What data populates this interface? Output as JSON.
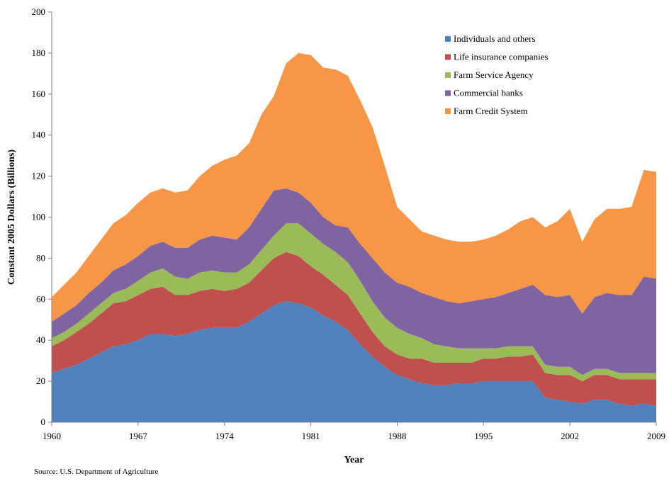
{
  "chart_data": {
    "type": "area",
    "stacked": true,
    "title": "",
    "xlabel": "Year",
    "ylabel": "Constant 2005 Dollars (Billions)",
    "xlim": [
      1960,
      2009
    ],
    "ylim": [
      0,
      200
    ],
    "yticks": [
      0,
      20,
      40,
      60,
      80,
      100,
      120,
      140,
      160,
      180,
      200
    ],
    "xticks": [
      1960,
      1967,
      1974,
      1981,
      1988,
      1995,
      2002,
      2009
    ],
    "legend_position": "top-right",
    "x": [
      1960,
      1961,
      1962,
      1963,
      1964,
      1965,
      1966,
      1967,
      1968,
      1969,
      1970,
      1971,
      1972,
      1973,
      1974,
      1975,
      1976,
      1977,
      1978,
      1979,
      1980,
      1981,
      1982,
      1983,
      1984,
      1985,
      1986,
      1987,
      1988,
      1989,
      1990,
      1991,
      1992,
      1993,
      1994,
      1995,
      1996,
      1997,
      1998,
      1999,
      2000,
      2001,
      2002,
      2003,
      2004,
      2005,
      2006,
      2007,
      2008,
      2009
    ],
    "series": [
      {
        "name": "Individuals and others",
        "color": "#4f81bd",
        "values": [
          24,
          26,
          28,
          31,
          34,
          37,
          38,
          40,
          43,
          43,
          42,
          43,
          45,
          46,
          46,
          46,
          49,
          53,
          57,
          59,
          58,
          56,
          52,
          49,
          45,
          38,
          32,
          27,
          23,
          21,
          19,
          18,
          18,
          19,
          19,
          20,
          20,
          20,
          20,
          20,
          12,
          11,
          10,
          9,
          11,
          11,
          9,
          8,
          9,
          8
        ]
      },
      {
        "name": "Life insurance companies",
        "color": "#c0504d",
        "values": [
          13,
          14,
          16,
          17,
          19,
          21,
          21,
          22,
          22,
          23,
          20,
          19,
          19,
          19,
          18,
          19,
          19,
          21,
          23,
          24,
          23,
          20,
          20,
          18,
          17,
          15,
          12,
          10,
          10,
          10,
          12,
          11,
          11,
          10,
          10,
          11,
          11,
          12,
          12,
          13,
          12,
          12,
          13,
          11,
          12,
          12,
          12,
          13,
          12,
          13
        ]
      },
      {
        "name": "Farm Service Agency",
        "color": "#9bbb59",
        "values": [
          4,
          4,
          4,
          5,
          5,
          5,
          6,
          7,
          8,
          9,
          9,
          8,
          9,
          9,
          9,
          8,
          9,
          10,
          11,
          14,
          16,
          16,
          15,
          16,
          16,
          16,
          15,
          14,
          13,
          12,
          10,
          9,
          8,
          7,
          7,
          5,
          5,
          5,
          5,
          4,
          4,
          4,
          4,
          3,
          3,
          3,
          3,
          3,
          3,
          3
        ]
      },
      {
        "name": "Commercial banks",
        "color": "#8064a2",
        "values": [
          8,
          9,
          9,
          10,
          10,
          11,
          12,
          12,
          13,
          13,
          14,
          15,
          16,
          17,
          17,
          16,
          18,
          20,
          22,
          17,
          15,
          15,
          13,
          13,
          17,
          18,
          21,
          22,
          22,
          23,
          22,
          23,
          22,
          22,
          23,
          24,
          25,
          26,
          28,
          30,
          34,
          34,
          35,
          30,
          35,
          37,
          38,
          38,
          47,
          46
        ]
      },
      {
        "name": "Farm Credit System",
        "color": "#f79646",
        "values": [
          12,
          14,
          16,
          18,
          21,
          23,
          24,
          26,
          26,
          26,
          27,
          28,
          31,
          34,
          38,
          41,
          41,
          46,
          46,
          61,
          68,
          72,
          73,
          76,
          74,
          70,
          64,
          52,
          37,
          33,
          30,
          30,
          30,
          30,
          29,
          29,
          30,
          31,
          33,
          33,
          33,
          37,
          42,
          35,
          38,
          41,
          42,
          43,
          52,
          52
        ]
      }
    ],
    "source_note": "Source: U.S. Department of Agriculture"
  }
}
